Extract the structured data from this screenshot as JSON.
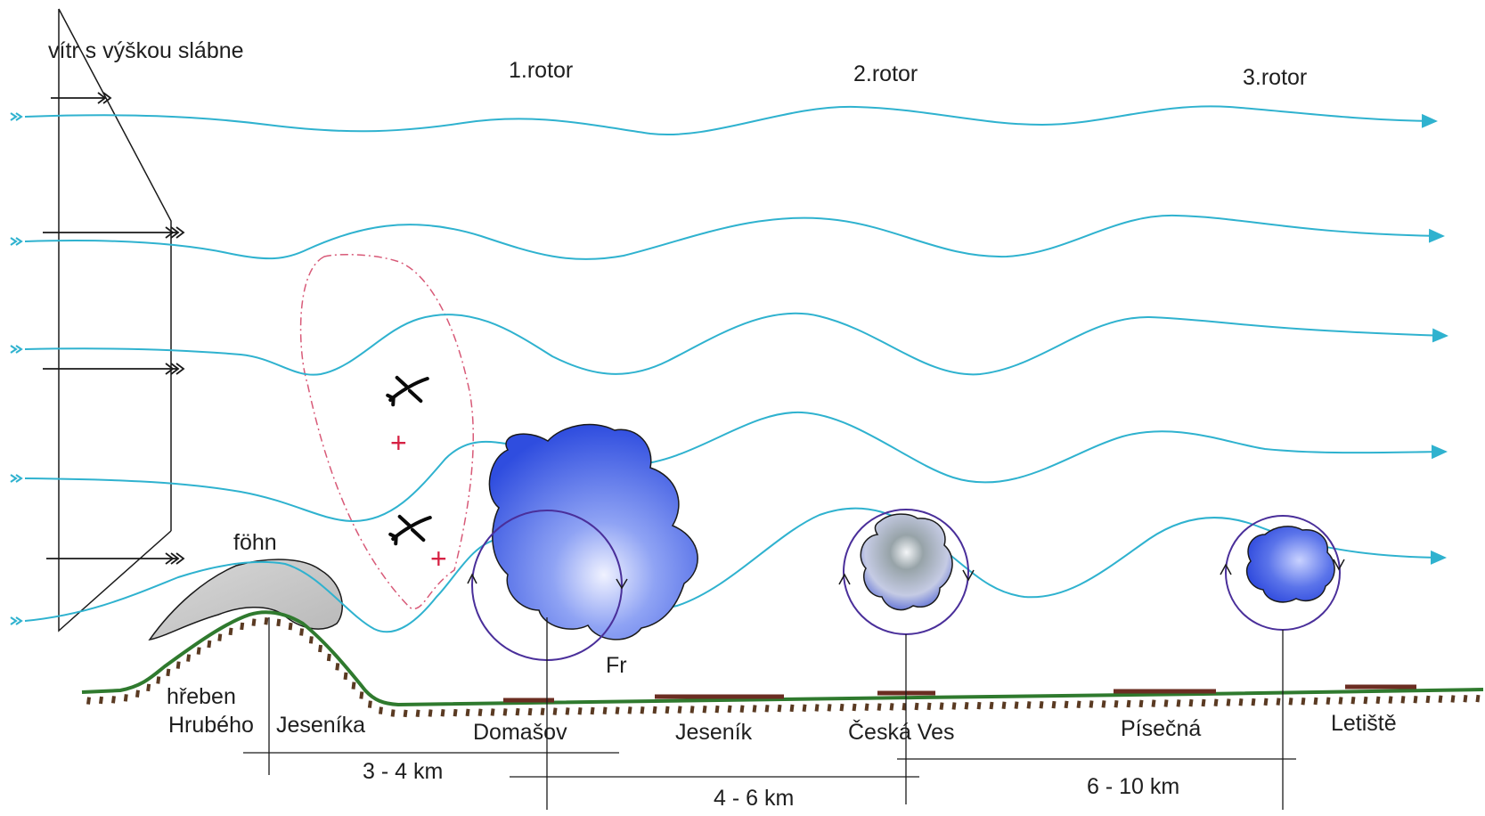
{
  "wind_profile": {
    "label": "vítr s výškou slábne"
  },
  "rotors": [
    {
      "label": "1.rotor"
    },
    {
      "label": "2.rotor"
    },
    {
      "label": "3.rotor"
    }
  ],
  "labels": {
    "fohn": "föhn",
    "froude": "Fr",
    "ridge_line1": "hřeben",
    "ridge_line2": "Hrubého",
    "ridge_line3": "Jeseníka",
    "lift_symbol": "+"
  },
  "places": [
    "Domašov",
    "Jeseník",
    "Česká Ves",
    "Písečná",
    "Letiště"
  ],
  "distances": [
    "3 - 4 km",
    "4 - 6 km",
    "6 - 10 km"
  ],
  "colors": {
    "streamline": "#2fb2cf",
    "ground": "#2f7a2e",
    "ground_ticks": "#5a3a22",
    "lift_zone": "#d85a78",
    "rotor_circle": "#4a2f9a",
    "cloud": "#3f5fe6",
    "fohn_cloud": "#c7c7c7"
  }
}
